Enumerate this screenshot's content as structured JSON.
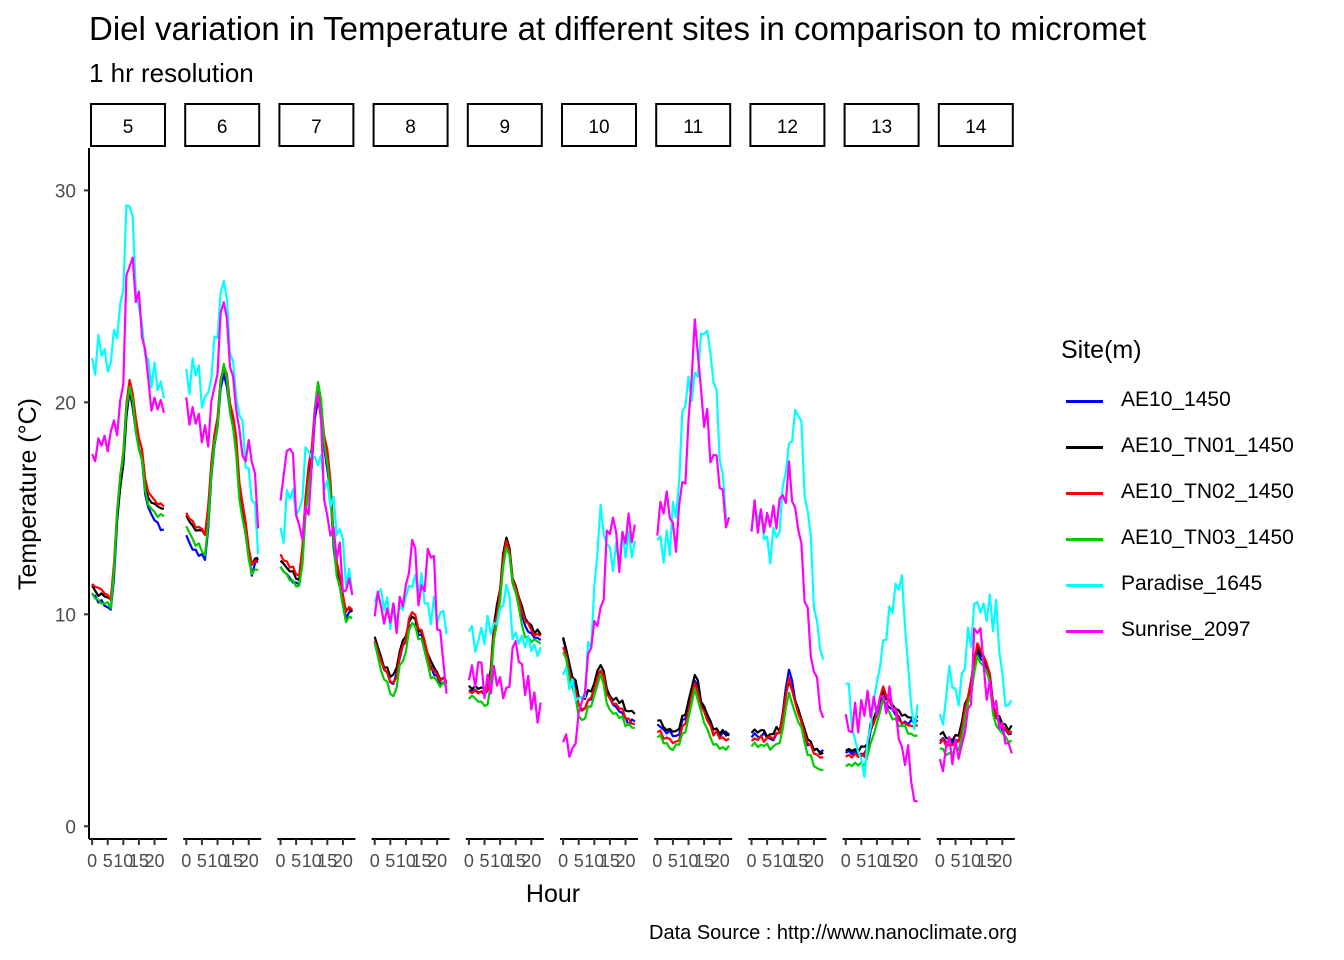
{
  "title": "Diel variation in Temperature at different sites in comparison to micromet",
  "subtitle": "1 hr resolution",
  "caption": "Data Source : http://www.nanoclimate.org",
  "legend": {
    "title": "Site(m)",
    "items": [
      {
        "label": "AE10_1450",
        "color": "#0000ff"
      },
      {
        "label": "AE10_TN01_1450",
        "color": "#000000"
      },
      {
        "label": "AE10_TN02_1450",
        "color": "#ff0000"
      },
      {
        "label": "AE10_TN03_1450",
        "color": "#00cc00"
      },
      {
        "label": "Paradise_1645",
        "color": "#00ffff"
      },
      {
        "label": "Sunrise_2097",
        "color": "#ff00ff"
      }
    ]
  },
  "chart_data": {
    "type": "line",
    "title": "Diel variation in Temperature at different sites in comparison to micromet",
    "subtitle": "1 hr resolution",
    "xlabel": "Hour",
    "ylabel": "Temperature (°C)",
    "facets": [
      "5",
      "6",
      "7",
      "8",
      "9",
      "10",
      "11",
      "12",
      "13",
      "14"
    ],
    "x_ticks": [
      "0",
      "5",
      "10",
      "15",
      "20"
    ],
    "y_ticks": [
      0,
      10,
      20,
      30
    ],
    "ylim": [
      -0.6,
      32
    ],
    "xlim": [
      -1,
      24
    ],
    "grid": false,
    "legend_position": "right",
    "series_keypoints_note": "values at hours [0,3,6,9,12,15,18,21,23] per facet",
    "series": [
      {
        "name": "AE10_1450",
        "color": "#0000ff",
        "panels": [
          [
            11.0,
            10.7,
            10.3,
            16,
            20.6,
            18,
            15,
            14.3,
            14.0
          ],
          [
            13.7,
            13.0,
            12.7,
            18,
            21.5,
            19,
            15,
            12,
            12.7
          ],
          [
            12.2,
            11.8,
            11.5,
            16,
            20.3,
            17,
            12,
            10,
            10.3
          ],
          [
            8.7,
            7.5,
            6.8,
            8.5,
            9.7,
            9,
            7.5,
            6.9,
            6.8
          ],
          [
            6.5,
            6.4,
            6.4,
            10,
            13.5,
            11,
            9.5,
            9.0,
            8.9
          ],
          [
            8.8,
            7,
            5.5,
            6.2,
            7.5,
            6,
            5.5,
            5.0,
            5.1
          ],
          [
            4.9,
            4.5,
            4.3,
            5.2,
            7,
            5.5,
            4.5,
            4.4,
            4.4
          ],
          [
            4.4,
            4.4,
            4.2,
            4.5,
            7.4,
            5.5,
            4,
            3.7,
            3.6
          ],
          [
            3.6,
            3.6,
            3.4,
            5,
            6,
            5.5,
            5,
            5.0,
            5.0
          ],
          [
            4.2,
            4.0,
            4.2,
            6,
            8.3,
            7.5,
            5.2,
            4.5,
            4.4
          ]
        ]
      },
      {
        "name": "AE10_TN01_1450",
        "color": "#000000",
        "panels": [
          [
            11.3,
            11.0,
            10.8,
            16,
            20.7,
            18,
            15.5,
            15.2,
            15.0
          ],
          [
            14.7,
            14.1,
            13.9,
            18,
            21.9,
            19,
            15,
            12.5,
            12.8
          ],
          [
            12.6,
            12.1,
            11.8,
            16.5,
            20.4,
            17.5,
            12,
            10.3,
            10.2
          ],
          [
            8.9,
            7.7,
            7.1,
            8.8,
            10,
            9.2,
            7.8,
            7.1,
            7.0
          ],
          [
            6.6,
            6.6,
            6.6,
            10.5,
            13.7,
            11.3,
            10,
            9.3,
            9.2
          ],
          [
            9.0,
            7.2,
            6,
            6.5,
            7.7,
            6.2,
            6,
            5.5,
            5.4
          ],
          [
            5.1,
            4.7,
            4.5,
            5.4,
            7.2,
            5.7,
            4.7,
            4.5,
            4.5
          ],
          [
            4.5,
            4.5,
            4.4,
            4.7,
            6.9,
            5.6,
            4.2,
            3.6,
            3.5
          ],
          [
            3.7,
            3.7,
            3.7,
            5.2,
            6.3,
            5.8,
            5.3,
            5.2,
            5.2
          ],
          [
            4.5,
            4.2,
            4.4,
            6.2,
            8.5,
            7.8,
            5.3,
            4.8,
            4.7
          ]
        ]
      },
      {
        "name": "AE10_TN02_1450",
        "color": "#ff0000",
        "panels": [
          [
            11.5,
            11.2,
            10.9,
            16.5,
            21.2,
            18.5,
            15.8,
            15.3,
            15.2
          ],
          [
            14.8,
            14.3,
            13.9,
            18.5,
            21.9,
            19.5,
            15.2,
            12.5,
            12.6
          ],
          [
            12.9,
            12.3,
            11.9,
            17,
            20.6,
            17.8,
            12.5,
            10.3,
            10.3
          ],
          [
            8.7,
            7.5,
            6.8,
            8.5,
            10.2,
            9.3,
            7.6,
            7.0,
            6.9
          ],
          [
            6.4,
            6.4,
            6.4,
            10.2,
            13.6,
            11.2,
            9.8,
            9.2,
            9.1
          ],
          [
            8.6,
            6.8,
            5.5,
            6.2,
            7.5,
            6,
            5.7,
            5.1,
            5.0
          ],
          [
            4.6,
            4.2,
            4.0,
            5.0,
            6.8,
            5.4,
            4.5,
            4.2,
            4.2
          ],
          [
            4.2,
            4.2,
            4.2,
            4.5,
            7.0,
            5.5,
            4.0,
            3.4,
            3.3
          ],
          [
            3.4,
            3.4,
            3.4,
            5,
            6.6,
            5.7,
            5,
            4.8,
            4.8
          ],
          [
            4.1,
            3.9,
            4.1,
            6.2,
            8.6,
            7.8,
            5.2,
            4.6,
            4.5
          ]
        ]
      },
      {
        "name": "AE10_TN03_1450",
        "color": "#00cc00",
        "panels": [
          [
            11.0,
            10.6,
            10.5,
            16.5,
            20.8,
            18,
            15.2,
            14.8,
            14.7
          ],
          [
            14.2,
            13.4,
            13.0,
            18,
            21.9,
            18.8,
            14.5,
            12,
            12.3
          ],
          [
            12.3,
            11.7,
            11.3,
            16,
            21.1,
            17.2,
            12,
            9.8,
            10.0
          ],
          [
            8.6,
            7.0,
            6.2,
            8.0,
            9.7,
            8.8,
            7.2,
            6.8,
            6.7
          ],
          [
            6.2,
            6.0,
            5.8,
            9.8,
            13.3,
            11,
            9.0,
            8.8,
            8.7
          ],
          [
            8.4,
            6.5,
            5.0,
            5.8,
            7.2,
            5.5,
            5.3,
            4.8,
            4.7
          ],
          [
            4.4,
            3.9,
            3.8,
            4.6,
            6.5,
            5.0,
            4.0,
            3.8,
            3.8
          ],
          [
            3.9,
            3.9,
            3.8,
            4.0,
            6.3,
            5.0,
            3.5,
            2.8,
            2.7
          ],
          [
            3.0,
            3.0,
            3.0,
            4.5,
            6.0,
            5.2,
            4.8,
            4.4,
            4.3
          ],
          [
            3.7,
            3.5,
            3.7,
            5.8,
            8.0,
            7.4,
            4.8,
            4.2,
            4.1
          ]
        ]
      },
      {
        "name": "Paradise_1645",
        "color": "#00ffff",
        "panels": [
          [
            22.2,
            23,
            22.5,
            25,
            30.4,
            24.5,
            22,
            21.5,
            21.3
          ],
          [
            21.5,
            22,
            20.5,
            23,
            26.2,
            22,
            19,
            16,
            13.8
          ],
          [
            14.0,
            16.5,
            15,
            18.5,
            17.5,
            16.5,
            15,
            12.5,
            11.7
          ],
          [
            11.8,
            11,
            10.3,
            11,
            12,
            11.5,
            10.6,
            10.2,
            10.0
          ],
          [
            9.7,
            9.4,
            9.8,
            10,
            11.5,
            9.5,
            9,
            8.8,
            8.4
          ],
          [
            8.2,
            7,
            6.5,
            9.5,
            15,
            13,
            13.5,
            14,
            13.8
          ],
          [
            14.3,
            13.6,
            15.5,
            21,
            21,
            24,
            22,
            16.5,
            14.8
          ],
          [
            14.8,
            15.2,
            13.5,
            15,
            18,
            20.4,
            15,
            10,
            8.0
          ],
          [
            7.5,
            4.5,
            3.0,
            6,
            9,
            11,
            12.2,
            5.5,
            5.5
          ],
          [
            5.5,
            7.7,
            6.5,
            9,
            11,
            10.5,
            10.5,
            6.5,
            6.2
          ]
        ]
      },
      {
        "name": "Sunrise_2097",
        "color": "#ff00ff",
        "panels": [
          [
            17.6,
            18.5,
            19,
            20,
            27.5,
            25,
            21,
            20.5,
            20.5
          ],
          [
            19.8,
            19.5,
            18.5,
            20.5,
            25.6,
            21,
            18.5,
            18.5,
            15.4
          ],
          [
            16.5,
            18.4,
            14,
            16,
            20.9,
            15,
            13.5,
            12,
            11.6
          ],
          [
            11.2,
            10.8,
            10.2,
            11,
            13.4,
            11,
            13.5,
            9,
            7.5
          ],
          [
            8.0,
            7.5,
            7.0,
            7.2,
            6.6,
            9,
            7,
            6.5,
            5.6
          ],
          [
            4.5,
            3.8,
            6,
            9,
            10.5,
            14.8,
            13,
            15,
            13.9
          ],
          [
            14.9,
            15.5,
            14,
            17,
            24,
            20,
            18,
            16,
            14.4
          ],
          [
            15.0,
            14.8,
            14.7,
            15,
            16.8,
            15,
            10,
            7,
            5.5
          ],
          [
            5.7,
            5.5,
            6,
            6,
            6.5,
            6.3,
            4,
            3.2,
            1.0
          ],
          [
            3.3,
            3.8,
            3.8,
            5.5,
            10.4,
            7,
            6,
            4.5,
            4.2
          ]
        ]
      }
    ]
  }
}
